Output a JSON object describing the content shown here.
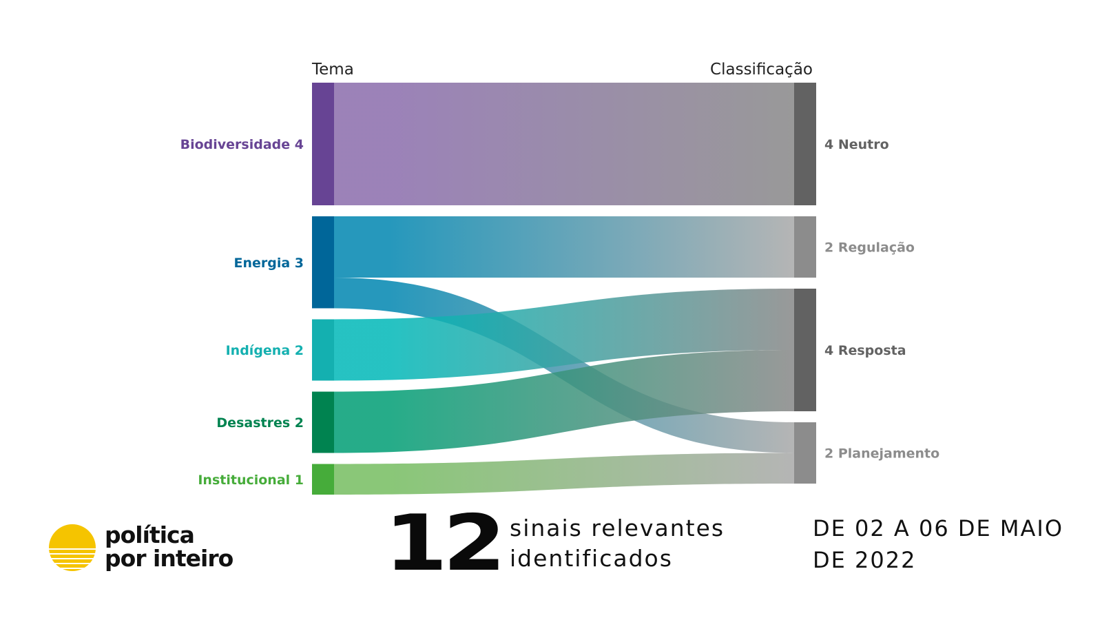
{
  "chart_data": {
    "type": "sankey",
    "left_header": "Tema",
    "right_header": "Classificação",
    "sources": [
      {
        "key": "bio",
        "name": "Biodiversidade",
        "value": 4,
        "label": "Biodiversidade 4",
        "color": "#674494",
        "flow_color": "#8a6cac"
      },
      {
        "key": "ene",
        "name": "Energia",
        "value": 3,
        "label": "Energia 3",
        "color": "#006699",
        "flow_color": "#0086b0"
      },
      {
        "key": "ind",
        "name": "Indígena",
        "value": 2,
        "label": "Indígena 2",
        "color": "#14b0b0",
        "flow_color": "#00b8b8"
      },
      {
        "key": "des",
        "name": "Desastres",
        "value": 2,
        "label": "Desastres 2",
        "color": "#008350",
        "flow_color": "#009e74"
      },
      {
        "key": "ins",
        "name": "Institucional",
        "value": 1,
        "label": "Institucional 1",
        "color": "#46ac3a",
        "flow_color": "#75bd60"
      }
    ],
    "targets": [
      {
        "key": "neu",
        "name": "Neutro",
        "value": 4,
        "label": "4 Neutro",
        "color": "#626262",
        "label_color": "#626262",
        "flow_color": "#878787"
      },
      {
        "key": "reg",
        "name": "Regulação",
        "value": 2,
        "label": "2 Regulação",
        "color": "#8c8c8c",
        "label_color": "#8c8c8c",
        "flow_color": "#a8a8a8"
      },
      {
        "key": "res",
        "name": "Resposta",
        "value": 4,
        "label": "4 Resposta",
        "color": "#626262",
        "label_color": "#626262",
        "flow_color": "#878787"
      },
      {
        "key": "pla",
        "name": "Planejamento",
        "value": 2,
        "label": "2 Planejamento",
        "color": "#8c8c8c",
        "label_color": "#8c8c8c",
        "flow_color": "#a8a8a8"
      }
    ],
    "links": [
      {
        "source": "bio",
        "target": "neu",
        "value": 4
      },
      {
        "source": "ene",
        "target": "reg",
        "value": 2
      },
      {
        "source": "ene",
        "target": "pla",
        "value": 1
      },
      {
        "source": "ind",
        "target": "res",
        "value": 2
      },
      {
        "source": "des",
        "target": "res",
        "value": 2
      },
      {
        "source": "ins",
        "target": "pla",
        "value": 1
      }
    ]
  },
  "footer": {
    "logo_line1": "política",
    "logo_line2": "por inteiro",
    "logo_color": "#f5c400",
    "count": "12",
    "count_desc_line1": "sinais relevantes",
    "count_desc_line2": "identificados",
    "period_line1": "DE 02 A 06 DE MAIO",
    "period_line2": "DE 2022"
  }
}
